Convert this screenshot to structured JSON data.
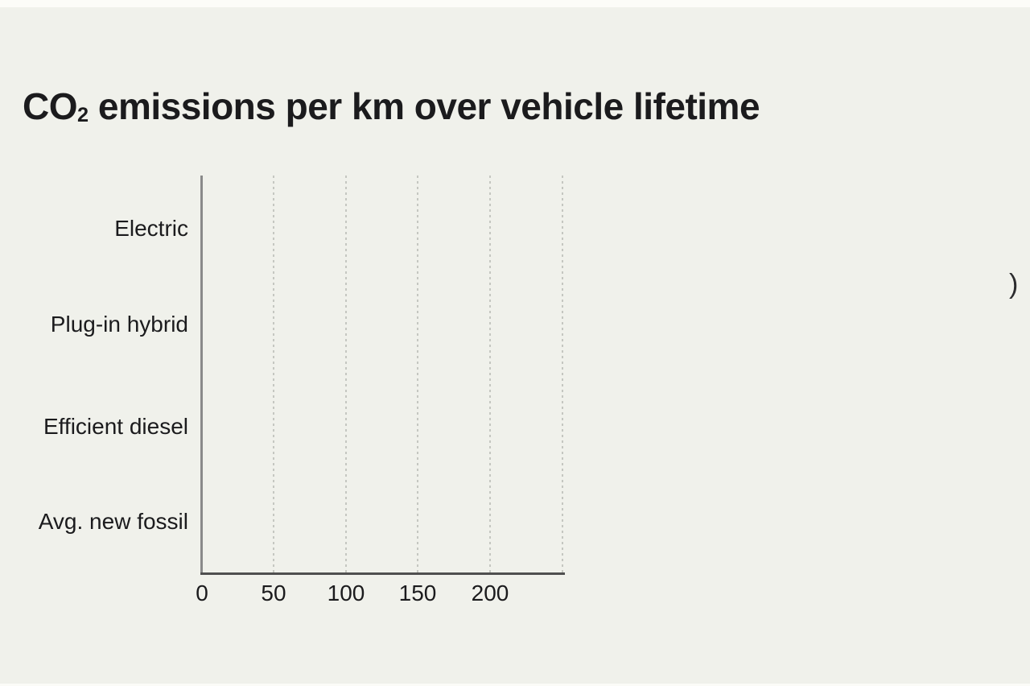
{
  "page": {
    "background_color": "#f0f1eb",
    "top_strip_color": "#fcfcf8",
    "clipped_text_right": ")"
  },
  "header": {
    "title_main": "CO",
    "title_sub": "2",
    "title_rest": " emissions per km over vehicle lifetime"
  },
  "chart_data": {
    "type": "bar",
    "orientation": "horizontal",
    "title": "CO₂ emissions per km over vehicle lifetime",
    "categories": [
      "Electric",
      "Plug-in hybrid",
      "Efficient diesel",
      "Avg. new fossil"
    ],
    "values": [
      null,
      null,
      null,
      null
    ],
    "bars_rendered": false,
    "x_tick_labels": [
      "0",
      "50",
      "100",
      "150",
      "200"
    ],
    "x_ticks": [
      0,
      50,
      100,
      150,
      200
    ],
    "xlim": [
      0,
      250
    ],
    "xlabel": "",
    "ylabel": "",
    "grid": "vertical dotted gridlines at x tick positions plus right edge",
    "legend_position": "none",
    "axis_color": "#4f4f4f",
    "y_axis_color": "#8a8a8a",
    "gridline_color": "#c5c7c1",
    "text_color": "#1b1b1d"
  }
}
